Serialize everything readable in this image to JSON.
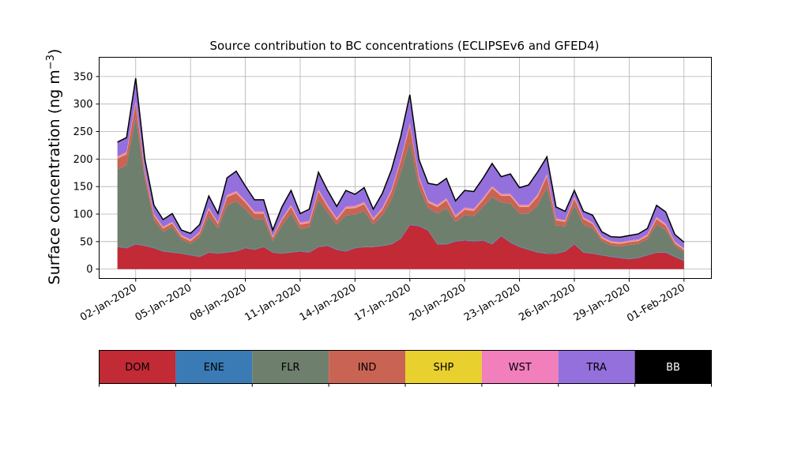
{
  "chart_data": {
    "type": "area",
    "stacked": true,
    "title": "Source contribution to BC concentrations (ECLIPSEv6 and GFED4)",
    "ylabel_main": "Surface concentration (ng m",
    "ylabel_sup": "−3",
    "ylabel_close": ")",
    "xlabel": "",
    "x_axis_type": "date",
    "x_range": [
      "2019-12-31T00:00",
      "2020-02-02T12:00"
    ],
    "ylim": [
      -17,
      385
    ],
    "yticks": [
      0,
      50,
      100,
      150,
      200,
      250,
      300,
      350
    ],
    "xtick_labels": [
      "02-Jan-2020",
      "05-Jan-2020",
      "08-Jan-2020",
      "11-Jan-2020",
      "14-Jan-2020",
      "17-Jan-2020",
      "20-Jan-2020",
      "23-Jan-2020",
      "26-Jan-2020",
      "29-Jan-2020",
      "01-Feb-2020"
    ],
    "xtick_dates": [
      "2020-01-02",
      "2020-01-05",
      "2020-01-08",
      "2020-01-11",
      "2020-01-14",
      "2020-01-17",
      "2020-01-20",
      "2020-01-23",
      "2020-01-26",
      "2020-01-29",
      "2020-02-01"
    ],
    "grid": true,
    "legend_placement": "below chart as color bar",
    "x": [
      "2020-01-01T00:00",
      "2020-01-01T12:00",
      "2020-01-02T00:00",
      "2020-01-02T12:00",
      "2020-01-03T00:00",
      "2020-01-03T12:00",
      "2020-01-04T00:00",
      "2020-01-04T12:00",
      "2020-01-05T00:00",
      "2020-01-05T12:00",
      "2020-01-06T00:00",
      "2020-01-06T12:00",
      "2020-01-07T00:00",
      "2020-01-07T12:00",
      "2020-01-08T00:00",
      "2020-01-08T12:00",
      "2020-01-09T00:00",
      "2020-01-09T12:00",
      "2020-01-10T00:00",
      "2020-01-10T12:00",
      "2020-01-11T00:00",
      "2020-01-11T12:00",
      "2020-01-12T00:00",
      "2020-01-12T12:00",
      "2020-01-13T00:00",
      "2020-01-13T12:00",
      "2020-01-14T00:00",
      "2020-01-14T12:00",
      "2020-01-15T00:00",
      "2020-01-15T12:00",
      "2020-01-16T00:00",
      "2020-01-16T12:00",
      "2020-01-17T00:00",
      "2020-01-17T12:00",
      "2020-01-18T00:00",
      "2020-01-18T12:00",
      "2020-01-19T00:00",
      "2020-01-19T12:00",
      "2020-01-20T00:00",
      "2020-01-20T12:00",
      "2020-01-21T00:00",
      "2020-01-21T12:00",
      "2020-01-22T00:00",
      "2020-01-22T12:00",
      "2020-01-23T00:00",
      "2020-01-23T12:00",
      "2020-01-24T00:00",
      "2020-01-24T12:00",
      "2020-01-25T00:00",
      "2020-01-25T12:00",
      "2020-01-26T00:00",
      "2020-01-26T12:00",
      "2020-01-27T00:00",
      "2020-01-27T12:00",
      "2020-01-28T00:00",
      "2020-01-28T12:00",
      "2020-01-29T00:00",
      "2020-01-29T12:00",
      "2020-01-30T00:00",
      "2020-01-30T12:00",
      "2020-01-31T00:00",
      "2020-01-31T12:00",
      "2020-02-01T00:00"
    ],
    "series": [
      {
        "name": "DOM",
        "color": "#c22a36",
        "values": [
          40,
          38,
          45,
          42,
          38,
          32,
          30,
          28,
          25,
          22,
          30,
          28,
          30,
          32,
          38,
          35,
          40,
          30,
          28,
          30,
          32,
          30,
          40,
          42,
          35,
          32,
          38,
          40,
          40,
          42,
          45,
          55,
          80,
          78,
          70,
          45,
          45,
          50,
          52,
          50,
          52,
          45,
          60,
          48,
          40,
          35,
          30,
          28,
          28,
          32,
          45,
          30,
          28,
          25,
          22,
          20,
          18,
          20,
          25,
          30,
          30,
          22,
          15
        ]
      },
      {
        "name": "ENE",
        "color": "#3a7ab5",
        "values": [
          1,
          1,
          1,
          1,
          1,
          1,
          1,
          1,
          1,
          1,
          1,
          1,
          1,
          1,
          1,
          1,
          1,
          1,
          1,
          1,
          1,
          1,
          1,
          1,
          1,
          1,
          1,
          1,
          1,
          1,
          1,
          1,
          1,
          1,
          1,
          1,
          1,
          1,
          1,
          1,
          1,
          1,
          1,
          1,
          1,
          1,
          1,
          1,
          1,
          1,
          1,
          1,
          1,
          1,
          1,
          1,
          1,
          1,
          1,
          1,
          1,
          1,
          1
        ]
      },
      {
        "name": "FLR",
        "color": "#6e7f6e",
        "values": [
          140,
          150,
          230,
          120,
          50,
          35,
          45,
          25,
          20,
          35,
          65,
          45,
          85,
          90,
          70,
          55,
          50,
          20,
          50,
          70,
          40,
          45,
          85,
          60,
          45,
          65,
          60,
          65,
          40,
          55,
          80,
          120,
          150,
          70,
          40,
          55,
          65,
          35,
          45,
          45,
          60,
          85,
          60,
          70,
          60,
          65,
          85,
          120,
          50,
          45,
          70,
          50,
          45,
          25,
          20,
          20,
          25,
          25,
          28,
          50,
          40,
          20,
          15
        ]
      },
      {
        "name": "IND",
        "color": "#c96455",
        "values": [
          20,
          20,
          25,
          12,
          8,
          6,
          7,
          5,
          5,
          7,
          12,
          8,
          15,
          15,
          12,
          10,
          10,
          6,
          10,
          12,
          8,
          8,
          15,
          10,
          8,
          12,
          12,
          12,
          8,
          10,
          15,
          20,
          30,
          15,
          10,
          12,
          14,
          8,
          10,
          10,
          12,
          16,
          12,
          14,
          12,
          12,
          16,
          20,
          10,
          8,
          12,
          10,
          8,
          5,
          5,
          5,
          5,
          5,
          6,
          10,
          8,
          4,
          4
        ]
      },
      {
        "name": "SHP",
        "color": "#e8d02e",
        "values": [
          1,
          1,
          1,
          1,
          1,
          1,
          1,
          1,
          1,
          1,
          1,
          1,
          1,
          1,
          1,
          1,
          1,
          1,
          1,
          1,
          1,
          1,
          1,
          1,
          1,
          1,
          1,
          1,
          1,
          1,
          1,
          1,
          1,
          1,
          1,
          1,
          1,
          1,
          1,
          1,
          1,
          1,
          1,
          1,
          1,
          1,
          1,
          1,
          1,
          1,
          1,
          1,
          1,
          1,
          1,
          1,
          1,
          1,
          1,
          1,
          1,
          1,
          1
        ]
      },
      {
        "name": "WST",
        "color": "#f07fbc",
        "values": [
          3,
          3,
          4,
          3,
          2,
          2,
          2,
          2,
          2,
          2,
          3,
          2,
          3,
          3,
          3,
          3,
          3,
          2,
          2,
          3,
          3,
          3,
          3,
          3,
          3,
          3,
          3,
          3,
          3,
          3,
          3,
          3,
          4,
          3,
          3,
          3,
          3,
          3,
          3,
          3,
          3,
          3,
          3,
          3,
          3,
          3,
          3,
          3,
          2,
          2,
          3,
          2,
          2,
          2,
          2,
          2,
          2,
          2,
          2,
          3,
          3,
          2,
          2
        ]
      },
      {
        "name": "TRA",
        "color": "#9370db",
        "values": [
          25,
          25,
          40,
          20,
          15,
          12,
          14,
          8,
          10,
          12,
          20,
          15,
          30,
          35,
          25,
          20,
          20,
          10,
          20,
          25,
          15,
          20,
          30,
          25,
          20,
          28,
          20,
          25,
          15,
          25,
          35,
          40,
          50,
          30,
          30,
          35,
          35,
          25,
          30,
          30,
          35,
          40,
          30,
          35,
          30,
          35,
          40,
          30,
          20,
          15,
          10,
          10,
          12,
          8,
          7,
          8,
          8,
          9,
          10,
          20,
          20,
          12,
          10
        ]
      },
      {
        "name": "BB",
        "color": "#000000",
        "values": [
          1,
          1,
          1,
          1,
          1,
          1,
          1,
          1,
          1,
          1,
          1,
          1,
          1,
          1,
          1,
          1,
          1,
          1,
          1,
          1,
          1,
          1,
          1,
          1,
          1,
          1,
          1,
          1,
          1,
          1,
          1,
          1,
          1,
          1,
          1,
          1,
          1,
          1,
          1,
          1,
          1,
          1,
          1,
          1,
          1,
          1,
          1,
          1,
          1,
          1,
          1,
          1,
          1,
          1,
          1,
          1,
          1,
          1,
          1,
          1,
          1,
          1,
          1
        ]
      }
    ]
  }
}
